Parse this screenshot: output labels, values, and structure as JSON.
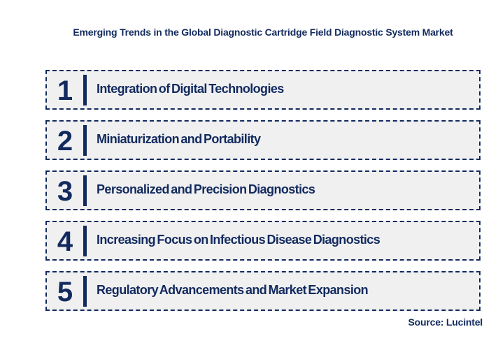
{
  "page": {
    "background_color": "#ffffff",
    "accent_navy": "#122a5e",
    "box_fill_color": "#f0f0f1"
  },
  "title": "Emerging Trends in the Global Diagnostic Cartridge Field Diagnostic System Market",
  "trends": [
    {
      "number": "1",
      "label": "Integration of Digital Technologies"
    },
    {
      "number": "2",
      "label": "Miniaturization and Portability"
    },
    {
      "number": "3",
      "label": "Personalized and Precision Diagnostics"
    },
    {
      "number": "4",
      "label": "Increasing Focus on Infectious Disease Diagnostics"
    },
    {
      "number": "5",
      "label": "Regulatory Advancements and Market Expansion"
    }
  ],
  "source": "Source: Lucintel"
}
